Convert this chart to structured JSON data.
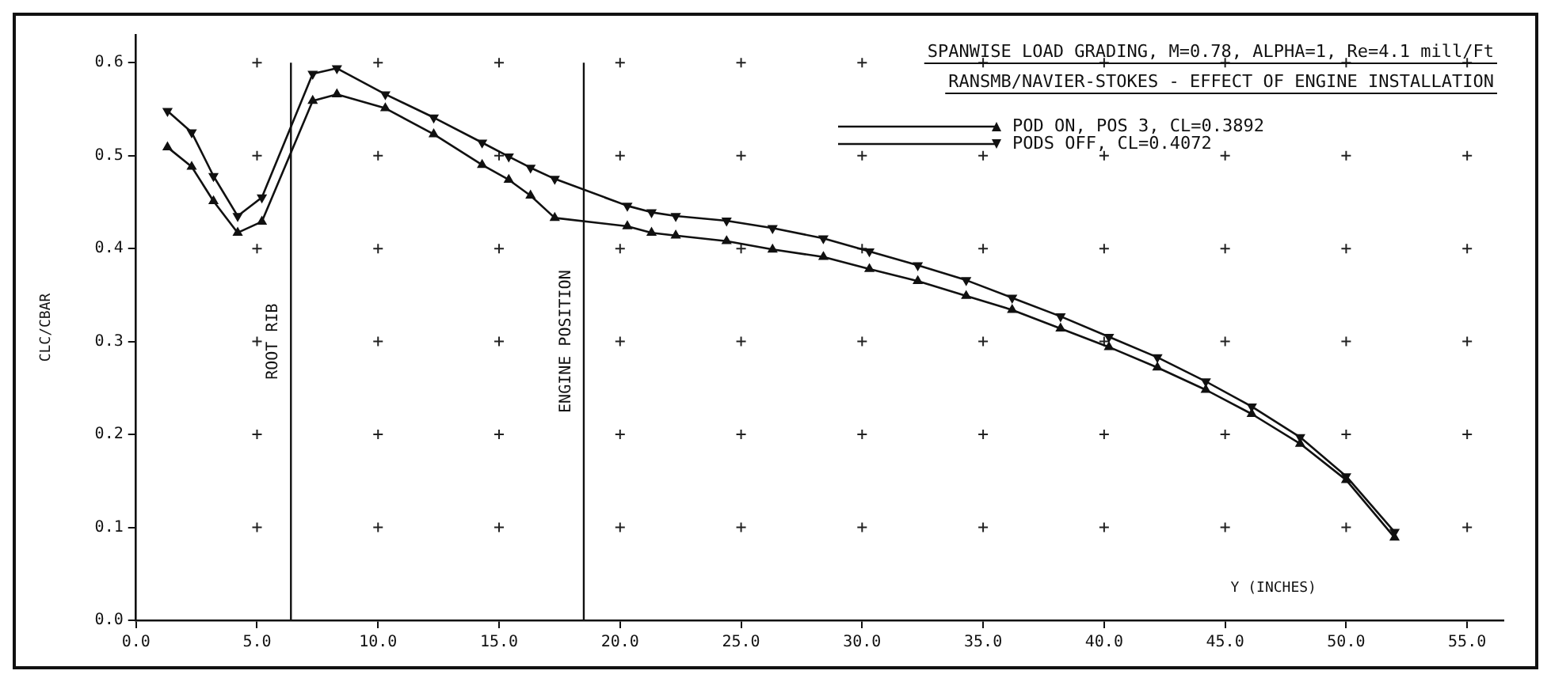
{
  "chart_data": {
    "type": "line",
    "title": "SPANWISE LOAD GRADING, M=0.78, ALPHA=1, Re=4.1 mill/Ft",
    "subtitle": "RANSMB/NAVIER-STOKES - EFFECT OF ENGINE INSTALLATION",
    "xlabel": "Y (INCHES)",
    "ylabel": "CLC/CBAR",
    "xlim": [
      0,
      56.5
    ],
    "xticks": [
      {
        "value": 0,
        "label": "0.0"
      },
      {
        "value": 5,
        "label": "5.0"
      },
      {
        "value": 10,
        "label": "10.0"
      },
      {
        "value": 15,
        "label": "15.0"
      },
      {
        "value": 20,
        "label": "20.0"
      },
      {
        "value": 25,
        "label": "25.0"
      },
      {
        "value": 30,
        "label": "30.0"
      },
      {
        "value": 35,
        "label": "35.0"
      },
      {
        "value": 40,
        "label": "40.0"
      },
      {
        "value": 45,
        "label": "45.0"
      },
      {
        "value": 50,
        "label": "50.0"
      },
      {
        "value": 55,
        "label": "55.0"
      }
    ],
    "ylim": [
      0,
      0.63
    ],
    "yticks": [
      {
        "value": 0,
        "label": "0.0"
      },
      0.1,
      0.2,
      0.3,
      0.4,
      0.5,
      0.6
    ],
    "grid": true,
    "legend": "top right",
    "marker": "triangle",
    "line_style": "solid",
    "ref_lines": [
      {
        "axis": "x",
        "value": 6.4,
        "label": "ROOT RIB"
      },
      {
        "axis": "x",
        "value": 18.5,
        "label": "ENGINE POSITION"
      }
    ],
    "series": [
      {
        "name": "POD ON, POS 3, CL=0.3892",
        "color": "#111111",
        "x": [
          1.3,
          2.3,
          3.2,
          4.2,
          5.2,
          7.3,
          8.3,
          10.3,
          12.3,
          14.3,
          15.4,
          16.3,
          17.3,
          20.3,
          21.3,
          22.3,
          24.4,
          26.3,
          28.4,
          30.3,
          32.3,
          34.3,
          36.2,
          38.2,
          40.2,
          42.2,
          44.2,
          46.1,
          48.1,
          50.0,
          52.0
        ],
        "values": [
          0.509,
          0.488,
          0.451,
          0.417,
          0.429,
          0.559,
          0.566,
          0.551,
          0.523,
          0.49,
          0.474,
          0.457,
          0.433,
          0.424,
          0.417,
          0.414,
          0.408,
          0.399,
          0.391,
          0.378,
          0.365,
          0.349,
          0.334,
          0.314,
          0.294,
          0.272,
          0.248,
          0.222,
          0.19,
          0.151,
          0.089
        ]
      },
      {
        "name": "PODS OFF, CL=0.4072",
        "color": "#111111",
        "x": [
          1.3,
          2.3,
          3.2,
          4.2,
          5.2,
          7.3,
          8.3,
          10.3,
          12.3,
          14.3,
          15.4,
          16.3,
          17.3,
          20.3,
          21.3,
          22.3,
          24.4,
          26.3,
          28.4,
          30.3,
          32.3,
          34.3,
          36.2,
          38.2,
          40.2,
          42.2,
          44.2,
          46.1,
          48.1,
          50.0,
          52.0
        ],
        "values": [
          0.548,
          0.525,
          0.478,
          0.435,
          0.455,
          0.588,
          0.594,
          0.566,
          0.541,
          0.514,
          0.499,
          0.487,
          0.475,
          0.446,
          0.439,
          0.435,
          0.43,
          0.422,
          0.411,
          0.397,
          0.382,
          0.366,
          0.347,
          0.327,
          0.305,
          0.283,
          0.257,
          0.23,
          0.197,
          0.155,
          0.095
        ]
      }
    ]
  }
}
